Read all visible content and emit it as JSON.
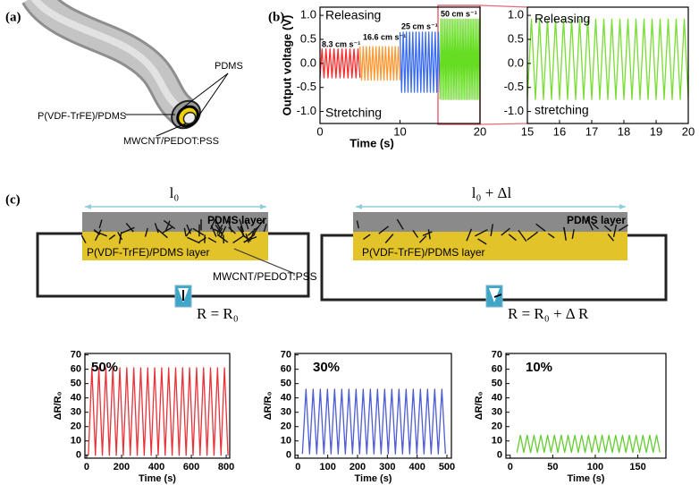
{
  "panel_labels": [
    "(a)",
    "(b)",
    "(c)"
  ],
  "cable_labels": [
    "PDMS",
    "P(VDF-TrFE)/PDMS",
    "MWCNT/PEDOT:PSS"
  ],
  "circuit": {
    "left": {
      "length": "l₀",
      "top_layer": "PDMS layer",
      "bottom_layer": "P(VDF-TrFE)/PDMS layer",
      "filler": "MWCNT/PEDOT:PSS",
      "resistance": "R = R₀"
    },
    "right": {
      "length": "l₀ + Δl",
      "top_layer": "PDMS layer",
      "bottom_layer": "P(VDF-TrFE)/PDMS layer",
      "resistance": "R = R₀ + Δ R"
    }
  },
  "chart_data": [
    {
      "type": "line",
      "y_label": "Output voltage (V)",
      "x_label": "Time (s)",
      "xlim": [
        0,
        20
      ],
      "xticks": [
        0,
        10,
        20
      ],
      "ylim": [
        -1.25,
        1.17
      ],
      "yticks": [
        {
          "value": -1,
          "label": "-1.0"
        },
        -0.5,
        {
          "value": 0,
          "label": "0.0"
        },
        0.5,
        {
          "value": 1,
          "label": "1.0"
        }
      ],
      "annotations": [
        "Releasing",
        "Stretching",
        "8.3 cm s⁻¹",
        "16.6 cm s⁻¹",
        "25 cm s⁻¹",
        "50 cm s⁻¹"
      ],
      "series": [
        {
          "color": "#ff2a2a",
          "x": [
            0,
            0.25,
            0.5,
            0.75,
            1,
            1.25,
            1.5,
            1.75,
            2,
            2.25,
            2.5,
            2.75,
            3,
            3.25,
            3.5,
            3.75,
            4,
            4.25,
            4.5,
            4.75,
            5
          ],
          "values": [
            -0.3,
            0.3,
            -0.3,
            0.3,
            -0.3,
            0.3,
            -0.3,
            0.3,
            -0.3,
            0.3,
            -0.3,
            0.3,
            -0.3,
            0.3,
            -0.3,
            0.3,
            -0.3,
            0.3,
            -0.3,
            0.3,
            -0.3
          ]
        },
        {
          "color": "#ff9933",
          "x": [
            5,
            5.2,
            5.4,
            5.6,
            5.8,
            6,
            6.2,
            6.4,
            6.6,
            6.8,
            7,
            7.2,
            7.4,
            7.6,
            7.8,
            8,
            8.2,
            8.4,
            8.6,
            8.8,
            9,
            9.2,
            9.4,
            9.6,
            9.8,
            10
          ],
          "values": [
            0.35,
            -0.35,
            0.35,
            -0.35,
            0.35,
            -0.35,
            0.35,
            -0.35,
            0.35,
            -0.35,
            0.35,
            -0.35,
            0.35,
            -0.35,
            0.35,
            -0.35,
            0.35,
            -0.35,
            0.35,
            -0.35,
            0.35,
            -0.35,
            0.35,
            -0.35,
            0.35,
            -0.35
          ]
        },
        {
          "color": "#3a6cf0",
          "x": [
            10,
            10.2,
            10.4,
            10.6,
            10.8,
            11,
            11.2,
            11.4,
            11.6,
            11.8,
            12,
            12.2,
            12.4,
            12.6,
            12.8,
            13,
            13.2,
            13.4,
            13.6,
            13.8,
            14,
            14.2,
            14.4,
            14.6,
            14.8,
            15
          ],
          "values": [
            0.65,
            -0.6,
            0.65,
            -0.6,
            0.65,
            -0.6,
            0.65,
            -0.6,
            0.65,
            -0.6,
            0.65,
            -0.6,
            0.65,
            -0.6,
            0.65,
            -0.6,
            0.65,
            -0.6,
            0.65,
            -0.6,
            0.65,
            -0.6,
            0.65,
            -0.6,
            0.65,
            -0.6
          ]
        },
        {
          "color": "#66dd22",
          "x": [
            15,
            15.125,
            15.25,
            15.375,
            15.5,
            15.625,
            15.75,
            15.875,
            16,
            16.125,
            16.25,
            16.375,
            16.5,
            16.625,
            16.75,
            16.875,
            17,
            17.125,
            17.25,
            17.375,
            17.5,
            17.625,
            17.75,
            17.875,
            18,
            18.125,
            18.25,
            18.375,
            18.5,
            18.625,
            18.75,
            18.875,
            19,
            19.125,
            19.25,
            19.375,
            19.5,
            19.625,
            19.75,
            19.875,
            20
          ],
          "values": [
            -0.75,
            0.92,
            -0.75,
            0.92,
            -0.75,
            0.92,
            -0.75,
            0.92,
            -0.75,
            0.92,
            -0.75,
            0.92,
            -0.75,
            0.92,
            -0.75,
            0.92,
            -0.75,
            0.92,
            -0.75,
            0.92,
            -0.75,
            0.92,
            -0.75,
            0.92,
            -0.75,
            0.92,
            -0.75,
            0.92,
            -0.75,
            0.92,
            -0.75,
            0.92,
            -0.75,
            0.92,
            -0.75,
            0.92,
            -0.75,
            0.92,
            -0.75,
            0.92,
            -0.75
          ]
        }
      ]
    },
    {
      "type": "line",
      "xlim": [
        15,
        20
      ],
      "xticks": [
        15,
        16,
        17,
        18,
        19,
        20
      ],
      "ylim": [
        -1.25,
        1.17
      ],
      "yticks": [
        {
          "value": -1,
          "label": "-1.0"
        },
        -0.5,
        {
          "value": 0,
          "label": "0.0"
        },
        0.5,
        {
          "value": 1,
          "label": "1.0"
        }
      ],
      "annotations": [
        "Releasing",
        "stretching"
      ],
      "series": [
        {
          "color": "#77dd33",
          "x": [
            15,
            15.125,
            15.25,
            15.375,
            15.5,
            15.625,
            15.75,
            15.875,
            16,
            16.125,
            16.25,
            16.375,
            16.5,
            16.625,
            16.75,
            16.875,
            17,
            17.125,
            17.25,
            17.375,
            17.5,
            17.625,
            17.75,
            17.875,
            18,
            18.125,
            18.25,
            18.375,
            18.5,
            18.625,
            18.75,
            18.875,
            19,
            19.125,
            19.25,
            19.375,
            19.5,
            19.625,
            19.75,
            19.875,
            20
          ],
          "values": [
            -0.75,
            0.92,
            -0.75,
            0.92,
            -0.75,
            0.92,
            -0.75,
            0.92,
            -0.75,
            0.92,
            -0.75,
            0.92,
            -0.75,
            0.92,
            -0.75,
            0.92,
            -0.75,
            0.92,
            -0.75,
            0.92,
            -0.75,
            0.92,
            -0.75,
            0.92,
            -0.75,
            0.92,
            -0.75,
            0.92,
            -0.75,
            0.92,
            -0.75,
            0.92,
            -0.75,
            0.92,
            -0.75,
            0.92,
            -0.75,
            0.92,
            -0.75,
            0.92,
            -0.75
          ]
        }
      ]
    },
    {
      "type": "line",
      "y_label": "ΔR/R₀",
      "x_label": "Time (s)",
      "xlim": [
        -10,
        820
      ],
      "xticks": [
        0,
        200,
        400,
        600,
        800
      ],
      "ylim": [
        -2,
        71
      ],
      "yticks": [
        0,
        10,
        20,
        30,
        40,
        50,
        60,
        70
      ],
      "annotations": [
        "50%"
      ],
      "series": [
        {
          "color": "#e8333a",
          "x": [
            10,
            30,
            50,
            70,
            90,
            110,
            130,
            150,
            170,
            190,
            210,
            230,
            250,
            270,
            290,
            310,
            330,
            350,
            370,
            390,
            410,
            430,
            450,
            470,
            490,
            510,
            530,
            550,
            570,
            590,
            610,
            630,
            650,
            670,
            690,
            710,
            730,
            750,
            770,
            790,
            810
          ],
          "values": [
            0,
            61,
            0,
            61,
            0,
            61,
            0,
            61,
            0,
            61,
            0,
            61,
            0,
            61,
            0,
            61,
            0,
            61,
            0,
            61,
            0,
            61,
            0,
            61,
            0,
            61,
            0,
            61,
            0,
            61,
            0,
            61,
            0,
            61,
            0,
            61,
            0,
            61,
            0,
            61,
            0
          ]
        }
      ]
    },
    {
      "type": "line",
      "y_label": "ΔR/R₀",
      "x_label": "Time (s)",
      "xlim": [
        -10,
        515
      ],
      "xticks": [
        0,
        100,
        200,
        300,
        400,
        500
      ],
      "ylim": [
        -2,
        71
      ],
      "yticks": [
        0,
        10,
        20,
        30,
        40,
        50,
        60,
        70
      ],
      "annotations": [
        "30%"
      ],
      "series": [
        {
          "color": "#4c5bd6",
          "x": [
            15,
            27,
            39,
            51,
            63,
            75,
            87,
            99,
            111,
            123,
            135,
            147,
            159,
            171,
            183,
            195,
            207,
            219,
            231,
            243,
            255,
            267,
            279,
            291,
            303,
            315,
            327,
            339,
            351,
            363,
            375,
            387,
            399,
            411,
            423,
            435,
            447,
            459,
            471,
            483,
            495
          ],
          "values": [
            1,
            46,
            1,
            46,
            1,
            46,
            1,
            46,
            1,
            46,
            1,
            46,
            1,
            46,
            1,
            46,
            1,
            46,
            1,
            46,
            1,
            46,
            1,
            46,
            1,
            46,
            1,
            46,
            1,
            46,
            1,
            46,
            1,
            46,
            1,
            46,
            1,
            46,
            1,
            46,
            1
          ]
        }
      ]
    },
    {
      "type": "line",
      "y_label": "ΔR/R₀",
      "x_label": "Time (s)",
      "xlim": [
        -5,
        183
      ],
      "xticks": [
        0,
        50,
        100,
        150
      ],
      "ylim": [
        -2,
        71
      ],
      "yticks": [
        0,
        10,
        20,
        30,
        40,
        50,
        60,
        70
      ],
      "annotations": [
        "10%"
      ],
      "series": [
        {
          "color": "#66cc33",
          "x": [
            8,
            12,
            16,
            20,
            24,
            28,
            32,
            36,
            40,
            44,
            48,
            52,
            56,
            60,
            64,
            68,
            72,
            76,
            80,
            84,
            88,
            92,
            96,
            100,
            104,
            108,
            112,
            116,
            120,
            124,
            128,
            132,
            136,
            140,
            144,
            148,
            152,
            156,
            160,
            164,
            168,
            172,
            176
          ],
          "values": [
            2,
            14,
            2,
            14,
            2,
            14,
            2,
            14,
            2,
            14,
            2,
            14,
            2,
            14,
            2,
            14,
            2,
            14,
            2,
            14,
            2,
            14,
            2,
            14,
            2,
            14,
            2,
            14,
            2,
            14,
            2,
            14,
            2,
            14,
            2,
            14,
            2,
            14,
            2,
            14,
            2,
            14,
            2
          ]
        }
      ]
    }
  ]
}
